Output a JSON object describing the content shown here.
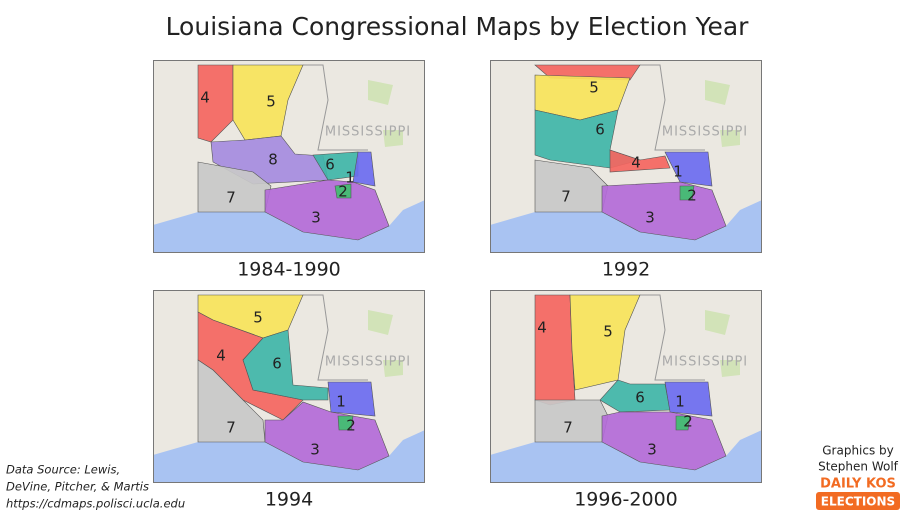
{
  "title": "Louisiana Congressional Maps by Election Year",
  "maps": [
    {
      "label": "1984-1990",
      "state_label": "MISSISSIPPI",
      "districts": [
        "4",
        "5",
        "8",
        "6",
        "1",
        "2",
        "7",
        "3"
      ]
    },
    {
      "label": "1992",
      "state_label": "MISSISSIPPI",
      "districts": [
        "5",
        "6",
        "4",
        "1",
        "2",
        "7",
        "3"
      ]
    },
    {
      "label": "1994",
      "state_label": "MISSISSIPPI",
      "districts": [
        "5",
        "4",
        "6",
        "1",
        "2",
        "7",
        "3"
      ]
    },
    {
      "label": "1996-2000",
      "state_label": "MISSISSIPPI",
      "districts": [
        "4",
        "5",
        "6",
        "1",
        "2",
        "7",
        "3"
      ]
    }
  ],
  "source": [
    "Data Source: Lewis,",
    "DeVine, Pitcher, & Martis",
    "https://cdmaps.polisci.ucla.edu"
  ],
  "credit": [
    "Graphics by",
    "Stephen Wolf"
  ],
  "logo": [
    "DAILY KOS",
    "ELECTIONS"
  ]
}
